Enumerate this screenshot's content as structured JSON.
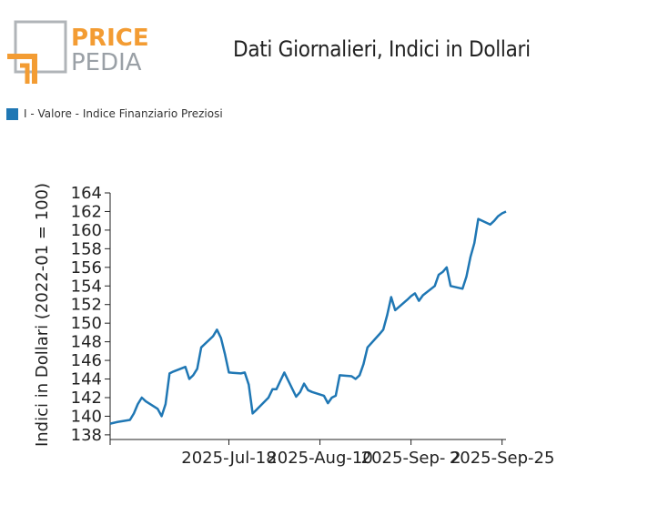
{
  "logo": {
    "word_top": "PRICE",
    "word_bottom": "PEDIA",
    "accent": "#f39c33",
    "gray": "#9aa0a6"
  },
  "chart_data": {
    "type": "line",
    "title": "Dati Giornalieri, Indici in Dollari",
    "ylabel": "Indici in Dollari (2022-01 = 100)",
    "xlabel": "",
    "ylim": [
      137.5,
      164
    ],
    "y_ticks": [
      138,
      140,
      142,
      144,
      146,
      148,
      150,
      152,
      154,
      156,
      158,
      160,
      162,
      164
    ],
    "x_tick_labels": [
      "2025-Jul-18",
      "2025-Aug-10",
      "2025-Sep- 2",
      "2025-Sep-25"
    ],
    "legend": "top-left",
    "series": [
      {
        "name": "I - Valore - Indice Finanziario Preziosi",
        "color": "#1f77b4",
        "x": [
          "2025-06-18",
          "2025-06-19",
          "2025-06-20",
          "2025-06-23",
          "2025-06-24",
          "2025-06-25",
          "2025-06-26",
          "2025-06-27",
          "2025-06-30",
          "2025-07-01",
          "2025-07-02",
          "2025-07-03",
          "2025-07-04",
          "2025-07-07",
          "2025-07-08",
          "2025-07-09",
          "2025-07-10",
          "2025-07-11",
          "2025-07-14",
          "2025-07-15",
          "2025-07-16",
          "2025-07-17",
          "2025-07-18",
          "2025-07-21",
          "2025-07-22",
          "2025-07-23",
          "2025-07-24",
          "2025-07-25",
          "2025-07-28",
          "2025-07-29",
          "2025-07-30",
          "2025-07-31",
          "2025-08-01",
          "2025-08-04",
          "2025-08-05",
          "2025-08-06",
          "2025-08-07",
          "2025-08-08",
          "2025-08-11",
          "2025-08-12",
          "2025-08-13",
          "2025-08-14",
          "2025-08-15",
          "2025-08-18",
          "2025-08-19",
          "2025-08-20",
          "2025-08-21",
          "2025-08-22",
          "2025-08-25",
          "2025-08-26",
          "2025-08-27",
          "2025-08-28",
          "2025-08-29",
          "2025-09-01",
          "2025-09-02",
          "2025-09-03",
          "2025-09-04",
          "2025-09-05",
          "2025-09-08",
          "2025-09-09",
          "2025-09-10",
          "2025-09-11",
          "2025-09-12",
          "2025-09-15",
          "2025-09-16",
          "2025-09-17",
          "2025-09-18",
          "2025-09-19",
          "2025-09-22",
          "2025-09-23",
          "2025-09-24",
          "2025-09-25",
          "2025-09-26"
        ],
        "values": [
          139.2,
          139.3,
          139.4,
          139.6,
          140.3,
          141.3,
          142.0,
          141.6,
          140.8,
          140.0,
          141.3,
          144.6,
          144.8,
          145.3,
          144.0,
          144.4,
          145.1,
          147.4,
          148.6,
          149.3,
          148.4,
          146.7,
          144.7,
          144.6,
          144.7,
          143.4,
          140.3,
          140.7,
          142.0,
          142.9,
          142.9,
          143.8,
          144.7,
          142.1,
          142.6,
          143.5,
          142.8,
          142.6,
          142.2,
          141.4,
          142.0,
          142.2,
          144.4,
          144.3,
          144.0,
          144.4,
          145.6,
          147.4,
          148.8,
          149.3,
          150.9,
          152.8,
          151.4,
          152.5,
          152.9,
          153.2,
          152.4,
          153.0,
          154.0,
          155.2,
          155.5,
          156.0,
          154.0,
          153.7,
          155.0,
          157.1,
          158.6,
          161.2,
          160.6,
          161.0,
          161.5,
          161.8,
          162.0
        ]
      }
    ]
  }
}
